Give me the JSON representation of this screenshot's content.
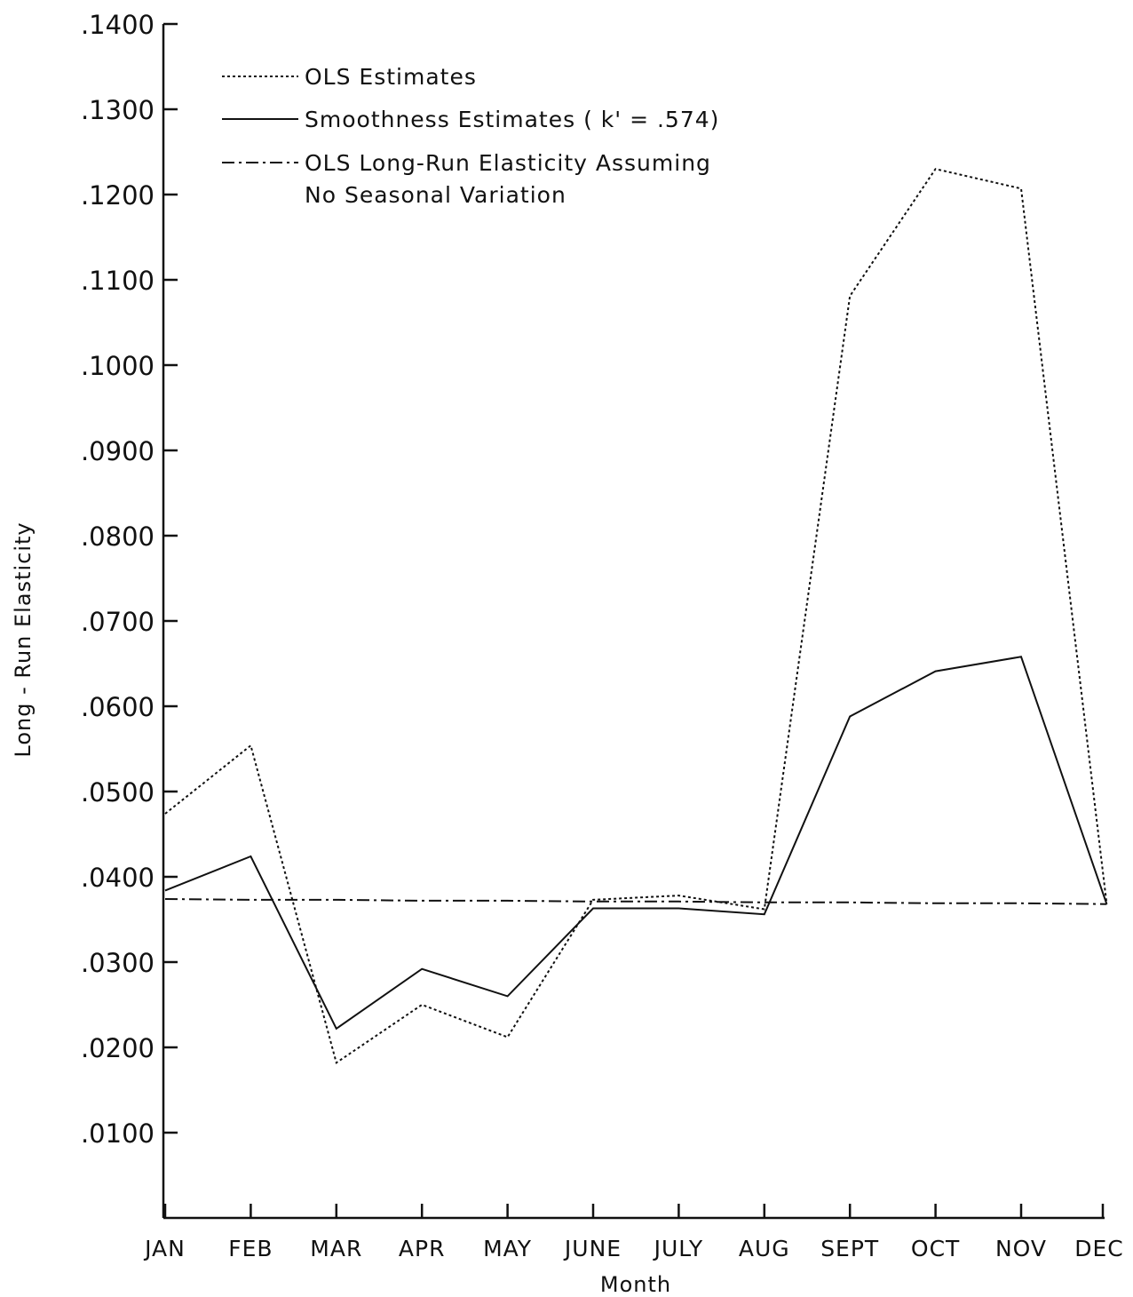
{
  "chart_data": {
    "type": "line",
    "xlabel": "Month",
    "ylabel": "Long - Run Elasticity",
    "categories": [
      "JAN",
      "FEB",
      "MAR",
      "APR",
      "MAY",
      "JUNE",
      "JULY",
      "AUG",
      "SEPT",
      "OCT",
      "NOV",
      "DEC"
    ],
    "yticks": [
      {
        "value": 0.01,
        "label": ".0100"
      },
      {
        "value": 0.02,
        "label": ".0200"
      },
      {
        "value": 0.03,
        "label": ".0300"
      },
      {
        "value": 0.04,
        "label": ".0400"
      },
      {
        "value": 0.05,
        "label": ".0500"
      },
      {
        "value": 0.06,
        "label": ".0600"
      },
      {
        "value": 0.07,
        "label": ".0700"
      },
      {
        "value": 0.08,
        "label": ".0800"
      },
      {
        "value": 0.09,
        "label": ".0900"
      },
      {
        "value": 0.1,
        "label": ".1000"
      },
      {
        "value": 0.11,
        "label": ".1100"
      },
      {
        "value": 0.12,
        "label": ".1200"
      },
      {
        "value": 0.13,
        "label": ".1300"
      },
      {
        "value": 0.14,
        "label": ".1400"
      }
    ],
    "ylim": [
      0,
      0.14
    ],
    "grid": false,
    "legend_position": "top-left",
    "series": [
      {
        "name": "OLS Estimates",
        "style": "dotted",
        "values": [
          0.0474,
          0.0554,
          0.0182,
          0.025,
          0.0212,
          0.0373,
          0.0378,
          0.0362,
          0.1081,
          0.123,
          0.1207,
          0.0368
        ]
      },
      {
        "name": "Smoothness Estimates ( k' = .574)",
        "style": "solid",
        "values": [
          0.0384,
          0.0424,
          0.0222,
          0.0292,
          0.026,
          0.0363,
          0.0363,
          0.0356,
          0.0588,
          0.0641,
          0.0658,
          0.0368
        ]
      },
      {
        "name": "OLS Long-Run Elasticity Assuming No Seasonal Variation",
        "legend_lines": [
          "OLS Long-Run Elasticity Assuming",
          "No Seasonal Variation"
        ],
        "style": "dash-dot",
        "values": [
          0.0374,
          0.0373,
          0.0373,
          0.0372,
          0.0372,
          0.0371,
          0.0371,
          0.037,
          0.037,
          0.0369,
          0.0369,
          0.0368
        ]
      }
    ]
  }
}
